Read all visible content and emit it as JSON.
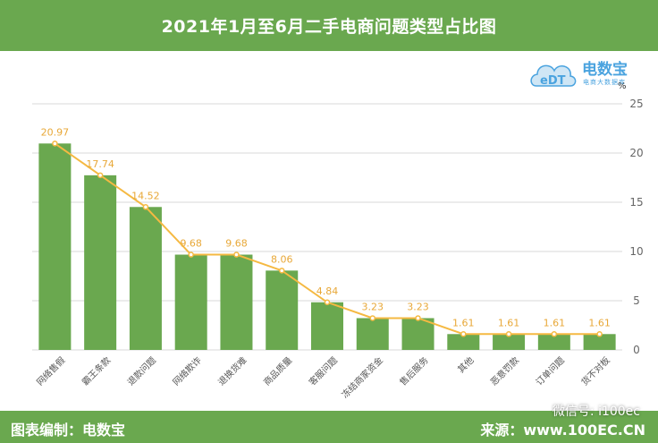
{
  "header": {
    "title": "2021年1月至6月二手电商问题类型占比图"
  },
  "footer": {
    "left": "图表编制：电数宝",
    "right": "来源：www.100EC.CN",
    "wechat": "微信号: i100ec"
  },
  "logo": {
    "name": "电数宝",
    "sub": "电商大数据库",
    "mark": "eDT"
  },
  "colors": {
    "bar": "#6aa84f",
    "line": "#f5b942",
    "header": "#6aa84f"
  },
  "chart_data": {
    "type": "bar",
    "title": "2021年1月至6月二手电商问题类型占比图",
    "unit": "%",
    "categories": [
      "网络售假",
      "霸王条款",
      "退款问题",
      "网络欺诈",
      "退换货难",
      "商品质量",
      "客服问题",
      "冻结商家资金",
      "售后服务",
      "其他",
      "恶意罚款",
      "订单问题",
      "货不对板"
    ],
    "values": [
      20.97,
      17.74,
      14.52,
      9.68,
      9.68,
      8.06,
      4.84,
      3.23,
      3.23,
      1.61,
      1.61,
      1.61,
      1.61
    ],
    "labels": [
      "20.97",
      "17.74",
      "14.52",
      "9.68",
      "9.68",
      "8.06",
      "4.84",
      "3.23",
      "3.23",
      "1.61",
      "1.61",
      "1.61",
      "1.61"
    ],
    "yticks": [
      "0",
      "5",
      "10",
      "15",
      "20",
      "25"
    ],
    "ylim": [
      0,
      25
    ],
    "overlay": "line",
    "xlabel": "",
    "ylabel": ""
  }
}
